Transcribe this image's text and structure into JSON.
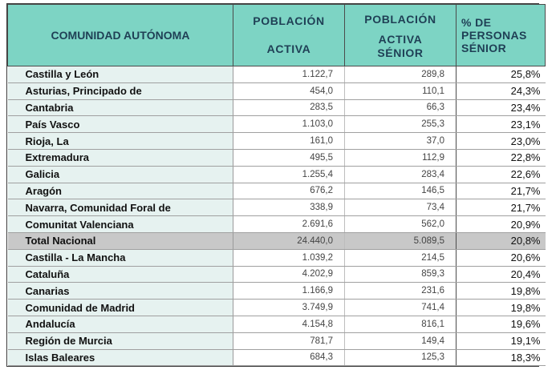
{
  "headers": {
    "comunidad": "COMUNIDAD AUTÓNOMA",
    "poblacion_activa": [
      "POBLACIÓN",
      "ACTIVA"
    ],
    "poblacion_activa_senior": [
      "POBLACIÓN",
      "ACTIVA",
      "SÉNIOR"
    ],
    "pct_senior": [
      "% DE",
      "PERSONAS",
      "SÉNIOR"
    ]
  },
  "rows": [
    {
      "name": "Castilla y León",
      "activa": "1.122,7",
      "senior": "289,8",
      "pct": "25,8%"
    },
    {
      "name": "Asturias, Principado de",
      "activa": "454,0",
      "senior": "110,1",
      "pct": "24,3%"
    },
    {
      "name": "Cantabria",
      "activa": "283,5",
      "senior": "66,3",
      "pct": "23,4%"
    },
    {
      "name": "País Vasco",
      "activa": "1.103,0",
      "senior": "255,3",
      "pct": "23,1%"
    },
    {
      "name": "Rioja, La",
      "activa": "161,0",
      "senior": "37,0",
      "pct": "23,0%"
    },
    {
      "name": "Extremadura",
      "activa": "495,5",
      "senior": "112,9",
      "pct": "22,8%"
    },
    {
      "name": "Galicia",
      "activa": "1.255,4",
      "senior": "283,4",
      "pct": "22,6%"
    },
    {
      "name": "Aragón",
      "activa": "676,2",
      "senior": "146,5",
      "pct": "21,7%"
    },
    {
      "name": "Navarra, Comunidad Foral de",
      "activa": "338,9",
      "senior": "73,4",
      "pct": "21,7%"
    },
    {
      "name": "Comunitat Valenciana",
      "activa": "2.691,6",
      "senior": "562,0",
      "pct": "20,9%"
    },
    {
      "name": "Total Nacional",
      "activa": "24.440,0",
      "senior": "5.089,5",
      "pct": "20,8%",
      "total": true
    },
    {
      "name": "Castilla - La Mancha",
      "activa": "1.039,2",
      "senior": "214,5",
      "pct": "20,6%"
    },
    {
      "name": "Cataluña",
      "activa": "4.202,9",
      "senior": "859,3",
      "pct": "20,4%"
    },
    {
      "name": "Canarias",
      "activa": "1.166,9",
      "senior": "231,6",
      "pct": "19,8%"
    },
    {
      "name": "Comunidad de Madrid",
      "activa": "3.749,9",
      "senior": "741,4",
      "pct": "19,8%"
    },
    {
      "name": "Andalucía",
      "activa": "4.154,8",
      "senior": "816,1",
      "pct": "19,6%"
    },
    {
      "name": "Región de Murcia",
      "activa": "781,7",
      "senior": "149,4",
      "pct": "19,1%"
    },
    {
      "name": "Islas Baleares",
      "activa": "684,3",
      "senior": "125,3",
      "pct": "18,3%"
    }
  ],
  "colors": {
    "header_bg": "#7dd4c4",
    "header_text": "#1f3f55",
    "name_col_bg": "#e6f2f0",
    "total_row_bg": "#c8c8c8"
  }
}
